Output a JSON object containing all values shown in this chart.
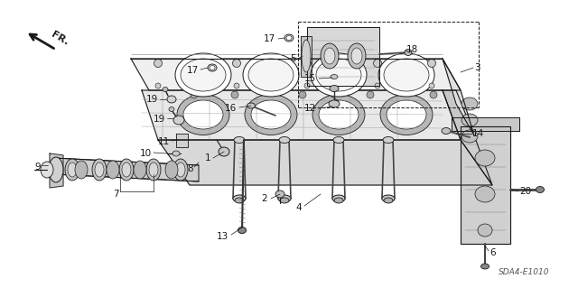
{
  "title": "",
  "diagram_code": "SDA4-E1010",
  "bg_color": "#ffffff",
  "line_color": "#1a1a1a",
  "fig_width": 6.4,
  "fig_height": 3.19,
  "dpi": 100
}
